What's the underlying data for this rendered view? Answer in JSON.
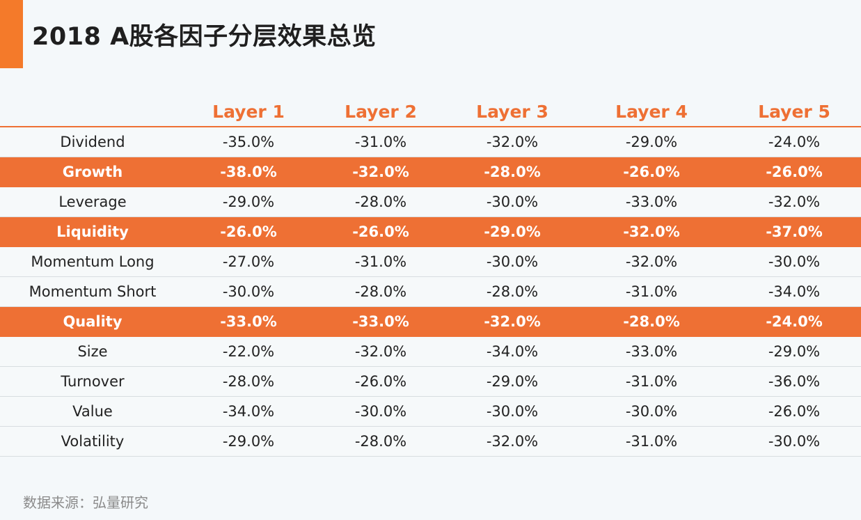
{
  "title": "2018 A股各因子分层效果总览",
  "source": "数据来源：弘量研究",
  "colors": {
    "accent": "#ee7034",
    "highlight_row": "#ee7034",
    "text": "#222222"
  },
  "chart_data": {
    "type": "table",
    "title": "2018 A股各因子分层效果总览",
    "columns": [
      "Layer 1",
      "Layer 2",
      "Layer 3",
      "Layer 4",
      "Layer 5"
    ],
    "rows": [
      {
        "label": "Dividend",
        "values": [
          "-35.0%",
          "-31.0%",
          "-32.0%",
          "-29.0%",
          "-24.0%"
        ],
        "highlight": false
      },
      {
        "label": "Growth",
        "values": [
          "-38.0%",
          "-32.0%",
          "-28.0%",
          "-26.0%",
          "-26.0%"
        ],
        "highlight": true
      },
      {
        "label": "Leverage",
        "values": [
          "-29.0%",
          "-28.0%",
          "-30.0%",
          "-33.0%",
          "-32.0%"
        ],
        "highlight": false
      },
      {
        "label": "Liquidity",
        "values": [
          "-26.0%",
          "-26.0%",
          "-29.0%",
          "-32.0%",
          "-37.0%"
        ],
        "highlight": true
      },
      {
        "label": "Momentum Long",
        "values": [
          "-27.0%",
          "-31.0%",
          "-30.0%",
          "-32.0%",
          "-30.0%"
        ],
        "highlight": false
      },
      {
        "label": "Momentum Short",
        "values": [
          "-30.0%",
          "-28.0%",
          "-28.0%",
          "-31.0%",
          "-34.0%"
        ],
        "highlight": false
      },
      {
        "label": "Quality",
        "values": [
          "-33.0%",
          "-33.0%",
          "-32.0%",
          "-28.0%",
          "-24.0%"
        ],
        "highlight": true
      },
      {
        "label": "Size",
        "values": [
          "-22.0%",
          "-32.0%",
          "-34.0%",
          "-33.0%",
          "-29.0%"
        ],
        "highlight": false
      },
      {
        "label": "Turnover",
        "values": [
          "-28.0%",
          "-26.0%",
          "-29.0%",
          "-31.0%",
          "-36.0%"
        ],
        "highlight": false
      },
      {
        "label": "Value",
        "values": [
          "-34.0%",
          "-30.0%",
          "-30.0%",
          "-30.0%",
          "-26.0%"
        ],
        "highlight": false
      },
      {
        "label": "Volatility",
        "values": [
          "-29.0%",
          "-28.0%",
          "-32.0%",
          "-31.0%",
          "-30.0%"
        ],
        "highlight": false
      }
    ]
  }
}
